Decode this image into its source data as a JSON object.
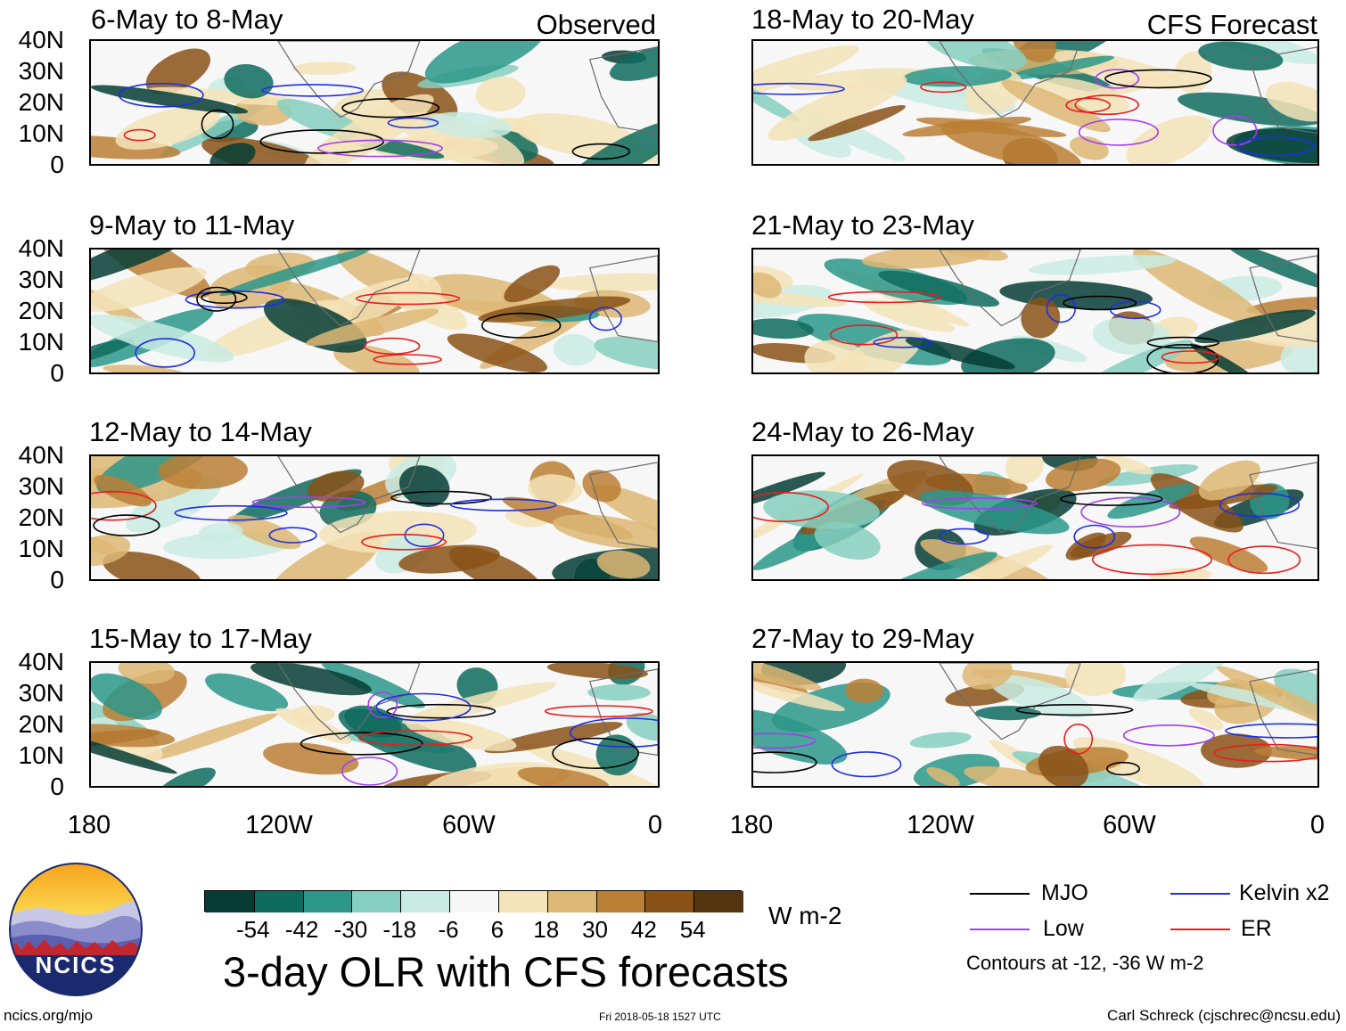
{
  "panels": [
    {
      "label": "6-May to 8-May",
      "tag": "Observed"
    },
    {
      "label": "9-May to 11-May",
      "tag": ""
    },
    {
      "label": "12-May to 14-May",
      "tag": ""
    },
    {
      "label": "15-May to 17-May",
      "tag": ""
    },
    {
      "label": "18-May to 20-May",
      "tag": "CFS Forecast"
    },
    {
      "label": "21-May to 23-May",
      "tag": ""
    },
    {
      "label": "24-May to 26-May",
      "tag": ""
    },
    {
      "label": "27-May to 29-May",
      "tag": ""
    }
  ],
  "lat_ticks": [
    "40N",
    "30N",
    "20N",
    "10N",
    "0"
  ],
  "lon_ticks": [
    "180",
    "120W",
    "60W",
    "0"
  ],
  "colorbar": {
    "labels": [
      "-54",
      "-42",
      "-30",
      "-18",
      "-6",
      "6",
      "18",
      "30",
      "42",
      "54"
    ],
    "units": "W m-2",
    "colors": [
      "#053d35",
      "#0e6b5e",
      "#2c968a",
      "#86cfc1",
      "#c9ebe3",
      "#f7f7f7",
      "#f4e3b9",
      "#ddb774",
      "#bb7f35",
      "#8a5116",
      "#553510"
    ]
  },
  "title": "3-day OLR with CFS forecasts",
  "legend": {
    "items": [
      {
        "label": "MJO",
        "color": "#000000"
      },
      {
        "label": "Kelvin x2",
        "color": "#1f2fe0"
      },
      {
        "label": "Low",
        "color": "#a23ff0"
      },
      {
        "label": "ER",
        "color": "#e81e1e"
      }
    ],
    "note": "Contours at -12, -36 W m-2"
  },
  "logo": {
    "text": "NCICS"
  },
  "footer": {
    "url": "ncics.org/mjo",
    "timestamp": "Fri 2018-05-18 1527 UTC",
    "credit": "Carl Schreck (cjschrec@ncsu.edu)"
  }
}
